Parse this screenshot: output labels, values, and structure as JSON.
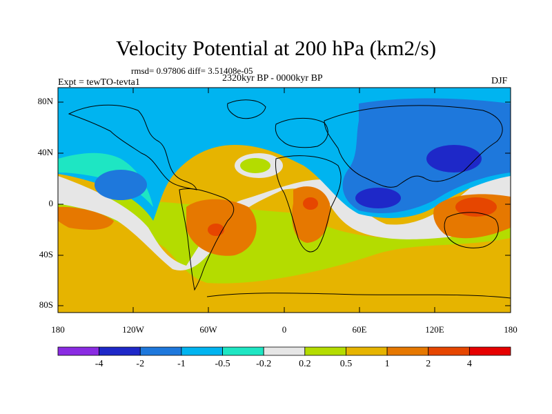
{
  "header": {
    "title": "Velocity Potential at 200 hPa (km2/s)",
    "stats": "rmsd= 0.97806 diff= 3.51408e-05",
    "period": "2320kyr BP - 0000kyr BP",
    "experiment": "Expt = tewTO-tevta1",
    "season": "DJF"
  },
  "chart_data": {
    "type": "contour-map",
    "variable": "Velocity Potential at 200 hPa",
    "units": "km2/s",
    "lat_ticks": [
      "80N",
      "40N",
      "0",
      "40S",
      "80S"
    ],
    "lon_ticks": [
      "180",
      "120W",
      "60W",
      "0",
      "60E",
      "120E",
      "180"
    ],
    "colorbar": {
      "levels": [
        "-4",
        "-2",
        "-1",
        "-0.5",
        "-0.2",
        "0.2",
        "0.5",
        "1",
        "2",
        "4"
      ],
      "colors": [
        "#8a2be2",
        "#1e28c8",
        "#1e78dc",
        "#00b4f0",
        "#1ee6c3",
        "#e6e6e6",
        "#b4dc00",
        "#e6b400",
        "#e67800",
        "#e64600",
        "#e60000"
      ]
    }
  }
}
